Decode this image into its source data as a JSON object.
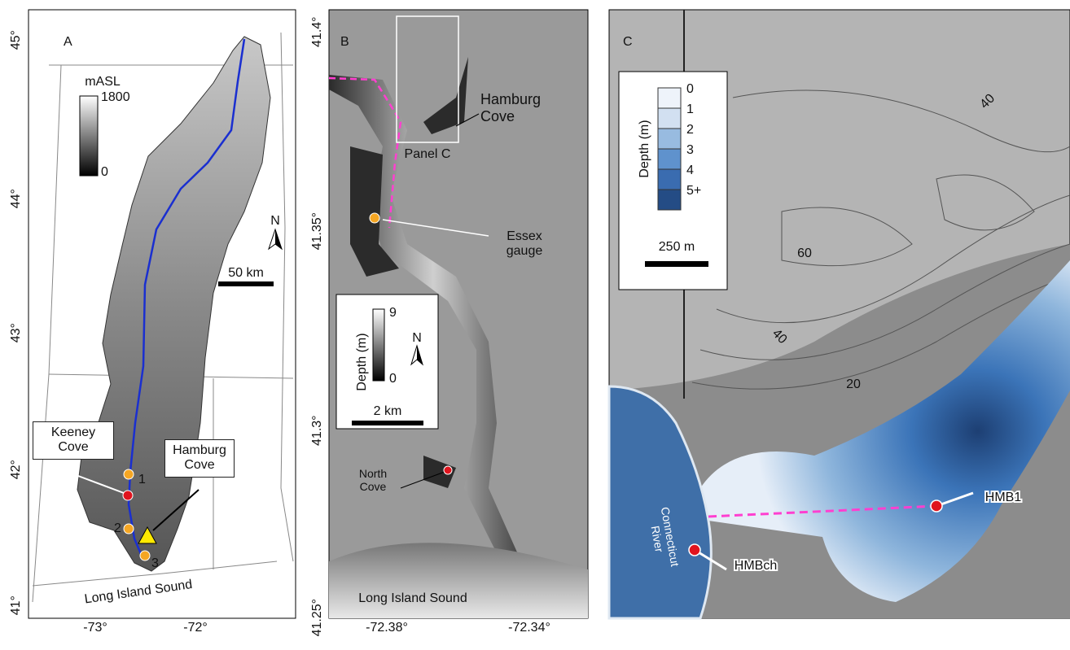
{
  "panels": {
    "a": {
      "label": "A",
      "lat_ticks": [
        "45°",
        "44°",
        "43°",
        "42°",
        "41°"
      ],
      "lon_ticks": [
        "-73°",
        "-72°"
      ],
      "legend": {
        "title": "mASL",
        "max": "1800",
        "min": "0"
      },
      "north": "N",
      "scale": "50 km",
      "sites": [
        "1",
        "2",
        "3"
      ],
      "callouts": [
        "Keeney Cove",
        "Hamburg Cove"
      ],
      "water": "Long Island Sound"
    },
    "b": {
      "label": "B",
      "lat_ticks": [
        "41.4°",
        "41.35°",
        "41.3°",
        "41.25°"
      ],
      "lon_ticks": [
        "-72.38°",
        "-72.34°"
      ],
      "callouts": [
        "Hamburg Cove",
        "Panel C",
        "Essex gauge",
        "North Cove"
      ],
      "legend": {
        "title": "Depth (m)",
        "max": "9",
        "min": "0"
      },
      "north": "N",
      "scale": "2 km",
      "water": "Long Island Sound"
    },
    "c": {
      "label": "C",
      "legend": {
        "title": "Depth (m)",
        "classes": [
          "0",
          "1",
          "2",
          "3",
          "4",
          "5+"
        ]
      },
      "scale": "250 m",
      "contours": [
        "40",
        "60",
        "40",
        "20"
      ],
      "callouts": [
        "HMB1",
        "Connecticut River",
        "HMBch"
      ]
    }
  }
}
